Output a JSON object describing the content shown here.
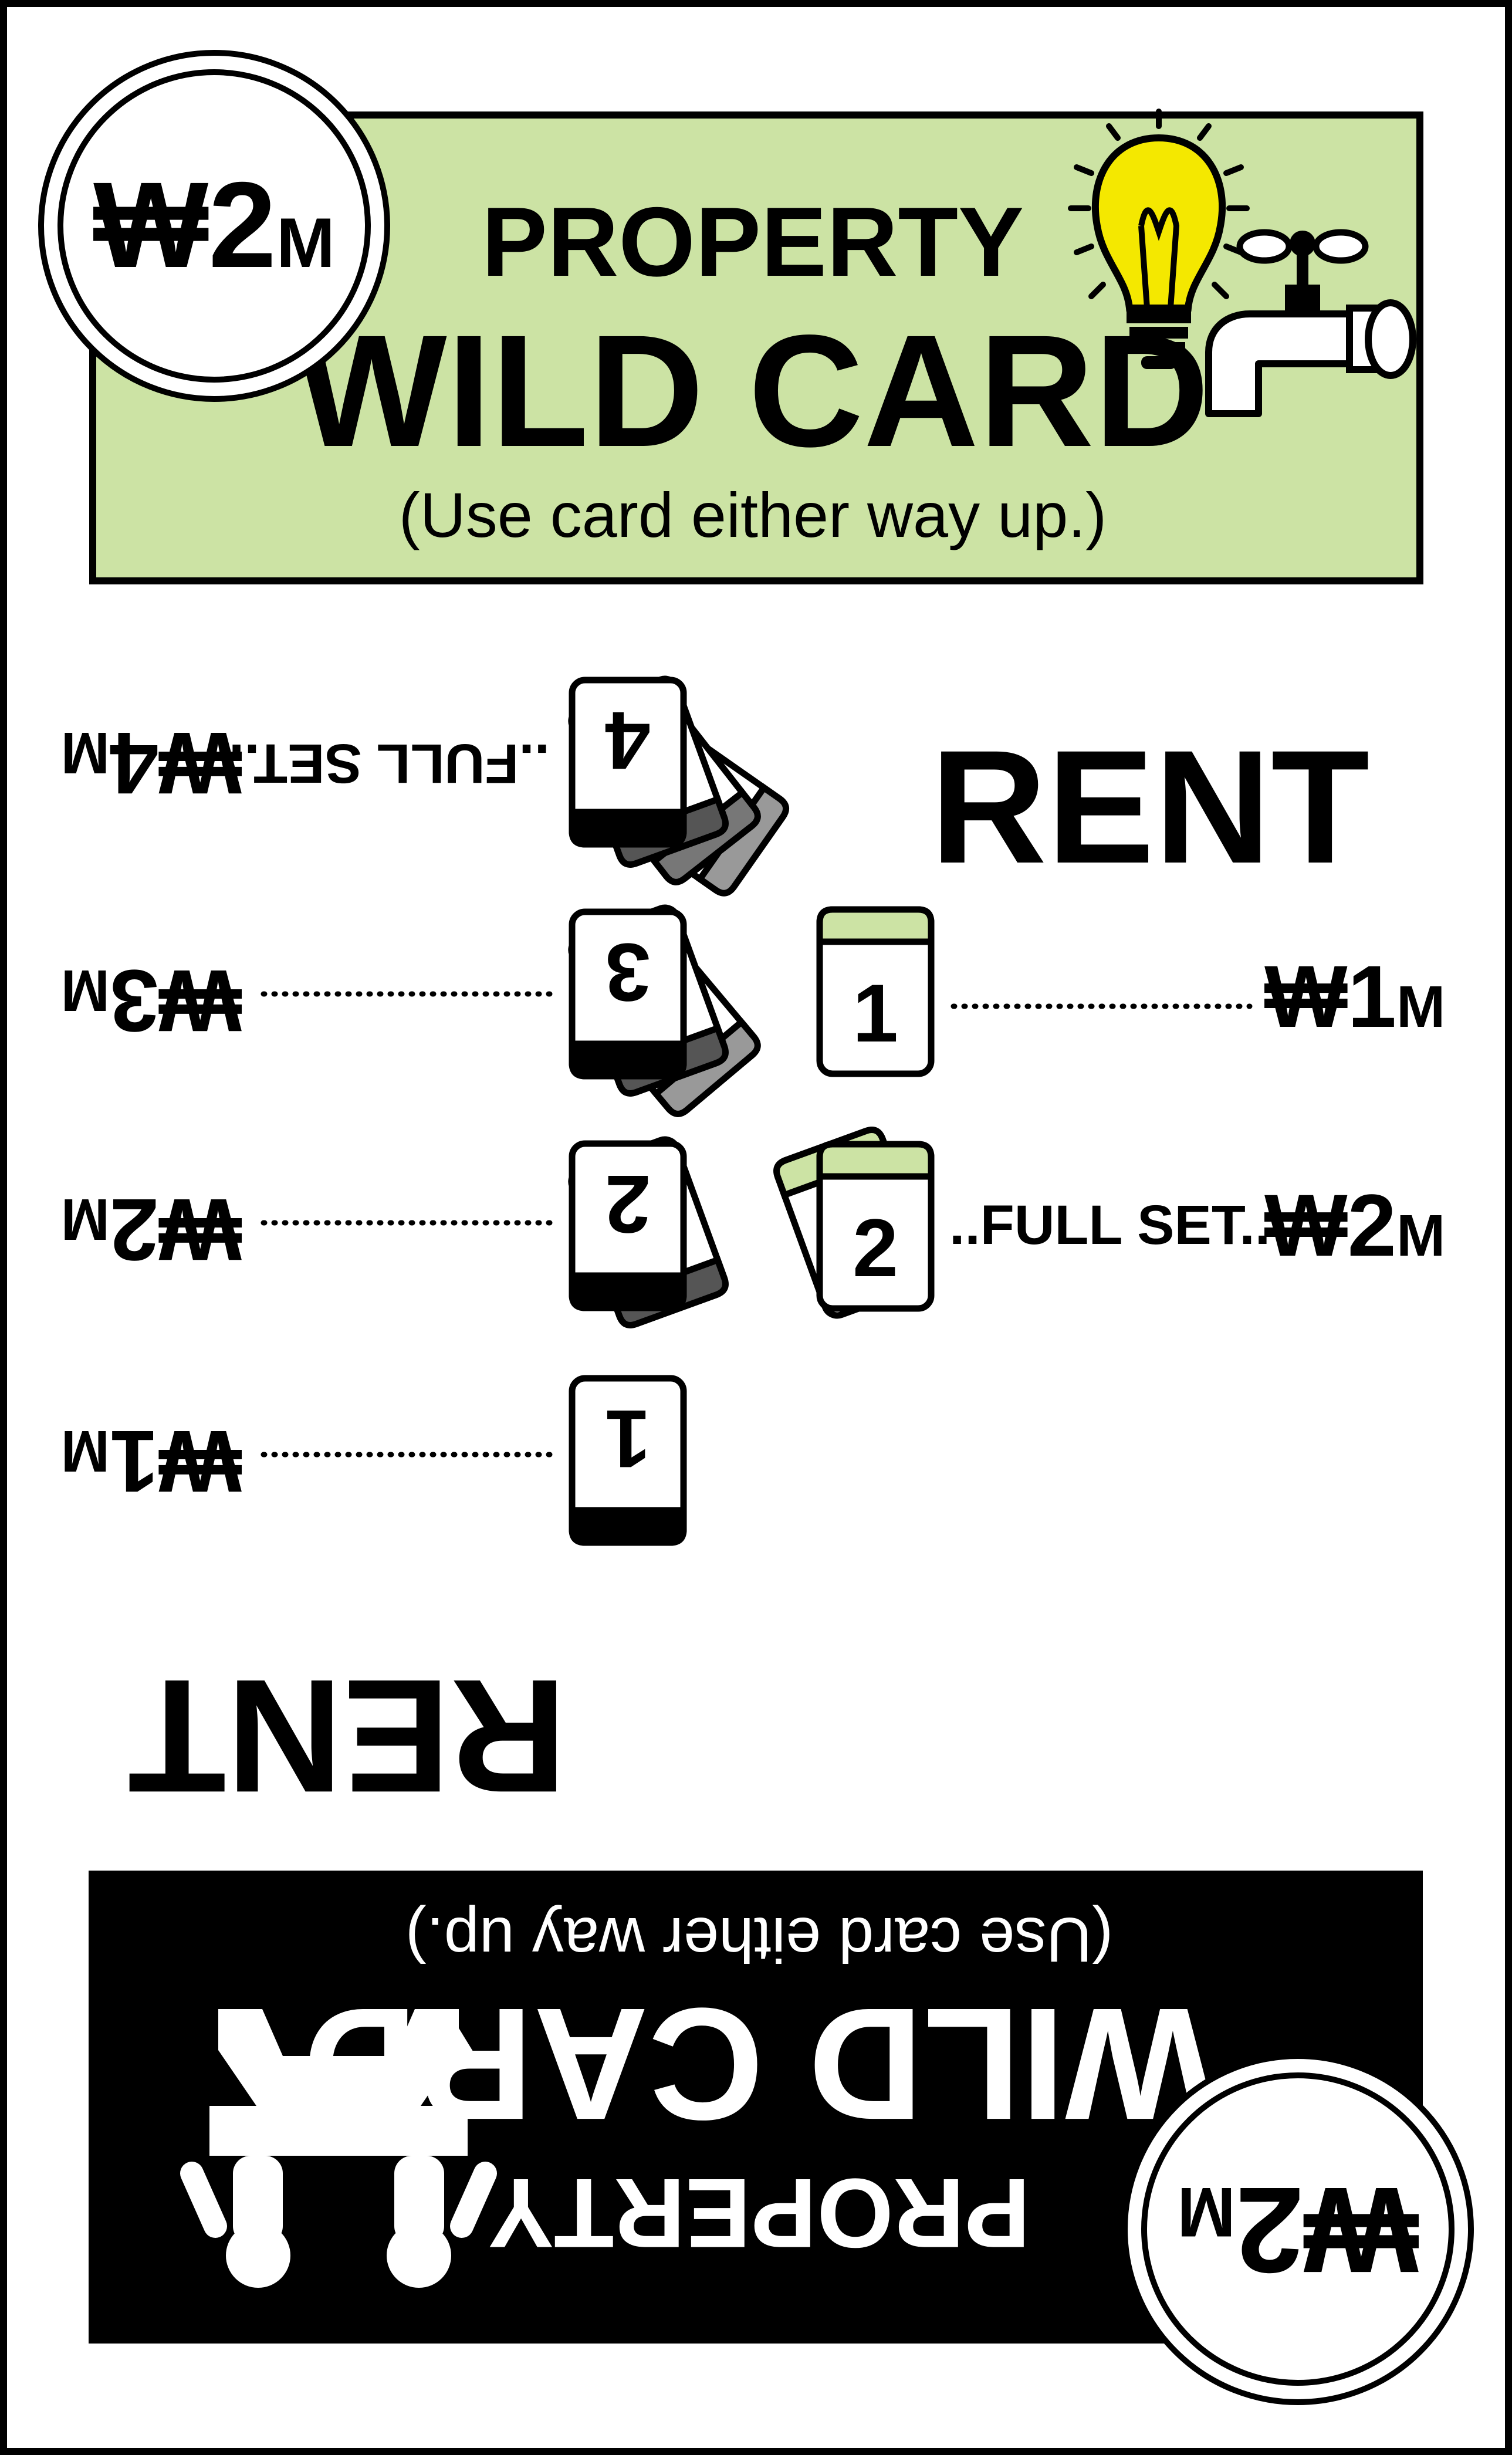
{
  "top_header": {
    "value": "₩2",
    "value_unit": "M",
    "category": "PROPERTY",
    "title": "WILD CARD",
    "instruction": "(Use card either way up.)",
    "color": "#cce3a4",
    "icons": [
      "light-bulb-icon",
      "water-tap-icon"
    ]
  },
  "bottom_header": {
    "value": "₩2",
    "value_unit": "M",
    "category": "PROPERTY",
    "title": "WILD CARD",
    "instruction": "(Use card either way up.)",
    "color": "#000000",
    "icons": [
      "station-icon"
    ]
  },
  "rent_sets": {
    "grey": {
      "label": "RENT",
      "color": "#999999",
      "rows": [
        {
          "cards": "1",
          "rent": "₩1",
          "unit": "M"
        },
        {
          "cards": "2",
          "rent": "₩2",
          "unit": "M"
        },
        {
          "cards": "3",
          "rent": "₩3",
          "unit": "M"
        },
        {
          "cards": "4",
          "prefix": "..FULL SET..",
          "rent": "₩4",
          "unit": "M"
        }
      ]
    },
    "green": {
      "label": "RENT",
      "color": "#cce3a4",
      "rows": [
        {
          "cards": "1",
          "rent": "₩1",
          "unit": "M"
        },
        {
          "cards": "2",
          "prefix": "..FULL SET..",
          "rent": "₩2",
          "unit": "M"
        }
      ]
    }
  }
}
